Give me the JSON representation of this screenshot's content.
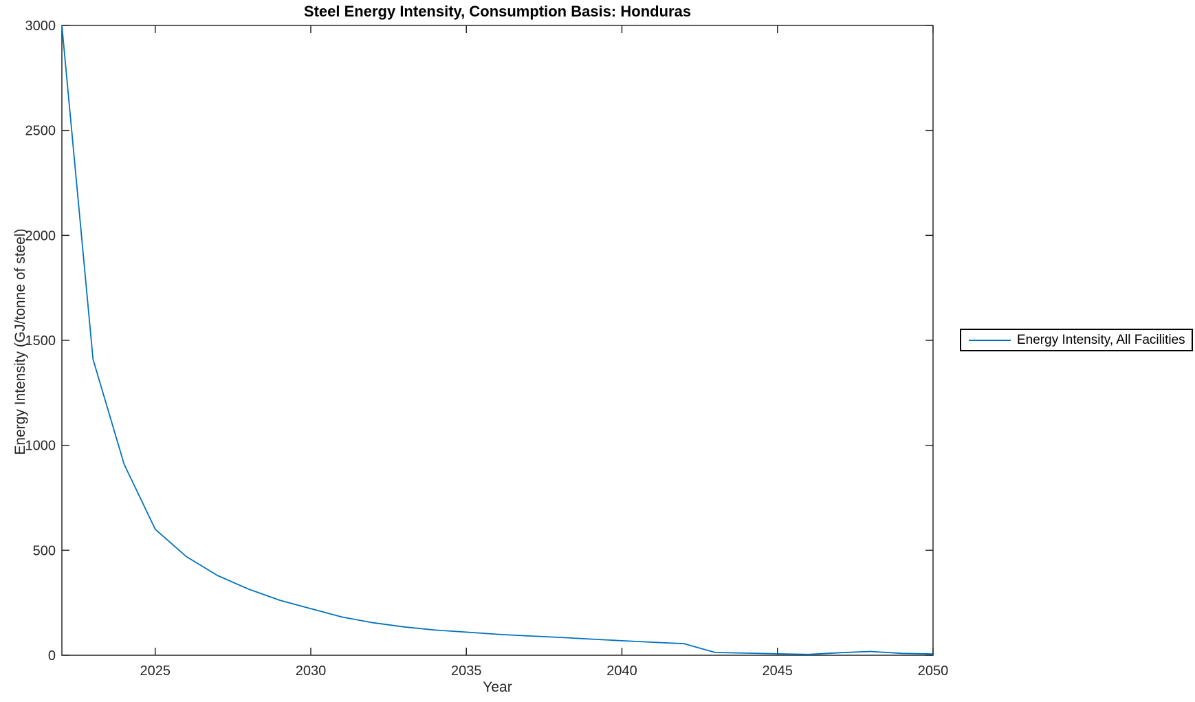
{
  "figure": {
    "title": "Steel Energy Intensity, Consumption Basis: Honduras",
    "xlabel": "Year",
    "ylabel": "Energy Intensity (GJ/tonne of steel)",
    "legend": {
      "entries": [
        {
          "label": "Energy Intensity, All Facilities",
          "color": "#0072BD"
        }
      ],
      "position": "east-outside",
      "border_color": "#000000",
      "background": "#ffffff"
    }
  },
  "chart_data": {
    "type": "line",
    "title": "Steel Energy Intensity, Consumption Basis: Honduras",
    "xlabel": "Year",
    "ylabel": "Energy Intensity (GJ/tonne of steel)",
    "xlim": [
      2022,
      2050
    ],
    "ylim": [
      0,
      3000
    ],
    "xticks": [
      2025,
      2030,
      2035,
      2040,
      2045,
      2050
    ],
    "yticks": [
      0,
      500,
      1000,
      1500,
      2000,
      2500,
      3000
    ],
    "grid": false,
    "box": true,
    "tick_direction": "in",
    "axis_color": "#262626",
    "legend_position": "right-outside",
    "series": [
      {
        "name": "Energy Intensity, All Facilities",
        "color": "#0072BD",
        "x": [
          2022,
          2023,
          2024,
          2025,
          2026,
          2027,
          2028,
          2029,
          2030,
          2031,
          2032,
          2033,
          2034,
          2035,
          2036,
          2037,
          2038,
          2039,
          2040,
          2041,
          2042,
          2043,
          2044,
          2045,
          2046,
          2047,
          2048,
          2049,
          2050
        ],
        "y": [
          3000,
          1410,
          910,
          600,
          470,
          380,
          315,
          262,
          222,
          182,
          155,
          135,
          120,
          110,
          100,
          92,
          85,
          77,
          69,
          62,
          55,
          13,
          10,
          7,
          4,
          12,
          18,
          9,
          6
        ]
      }
    ]
  },
  "colors": {
    "line_blue": "#0072BD",
    "text": "#262626",
    "background": "#ffffff"
  }
}
